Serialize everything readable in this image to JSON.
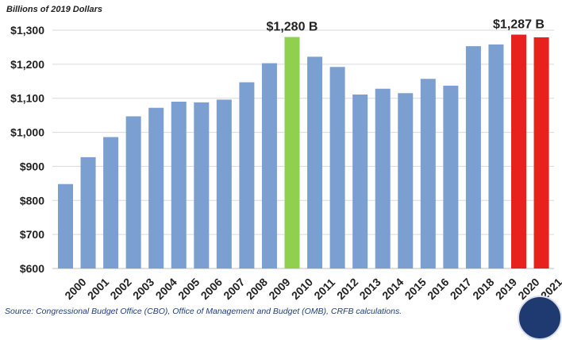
{
  "chart_data": {
    "type": "bar",
    "ylabel": "Billions of 2019 Dollars",
    "categories": [
      "2000",
      "2001",
      "2002",
      "2003",
      "2004",
      "2005",
      "2006",
      "2007",
      "2008",
      "2009",
      "2010",
      "2011",
      "2012",
      "2013",
      "2014",
      "2015",
      "2016",
      "2017",
      "2018",
      "2019",
      "2020",
      "2021"
    ],
    "values": [
      848,
      927,
      986,
      1047,
      1072,
      1090,
      1088,
      1096,
      1147,
      1203,
      1280,
      1222,
      1192,
      1111,
      1128,
      1115,
      1157,
      1137,
      1253,
      1258,
      1287,
      1279
    ],
    "bar_colors": [
      "#7b9fd1",
      "#7b9fd1",
      "#7b9fd1",
      "#7b9fd1",
      "#7b9fd1",
      "#7b9fd1",
      "#7b9fd1",
      "#7b9fd1",
      "#7b9fd1",
      "#7b9fd1",
      "#8fd14f",
      "#7b9fd1",
      "#7b9fd1",
      "#7b9fd1",
      "#7b9fd1",
      "#7b9fd1",
      "#7b9fd1",
      "#7b9fd1",
      "#7b9fd1",
      "#7b9fd1",
      "#e8211d",
      "#e8211d"
    ],
    "ylim": [
      600,
      1300
    ],
    "yticks": [
      600,
      700,
      800,
      900,
      1000,
      1100,
      1200,
      1300
    ],
    "ytick_labels": [
      "$600",
      "$700",
      "$800",
      "$900",
      "$1,000",
      "$1,100",
      "$1,200",
      "$1,300"
    ],
    "grid": true,
    "annotations": [
      {
        "category": "2010",
        "text": "$1,280 B"
      },
      {
        "category": "2020",
        "text": "$1,287 B"
      }
    ]
  },
  "source": "Source: Congressional Budget Office (CBO), Office of Management and Budget (OMB), CRFB calculations."
}
